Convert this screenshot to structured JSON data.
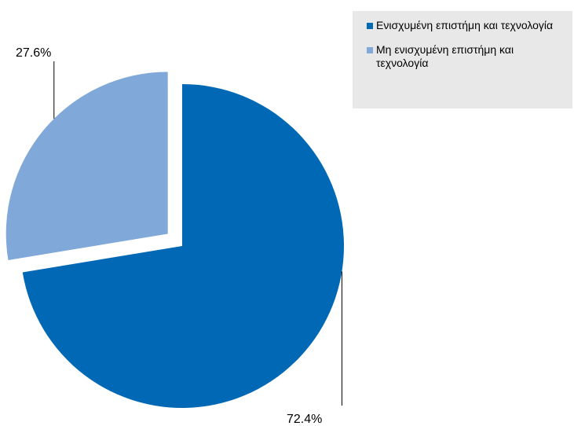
{
  "chart_data": {
    "type": "pie",
    "slices": [
      {
        "label": "Ενισχυμένη επιστήμη και τεχνολογία",
        "value": 72.4,
        "value_label": "72.4%",
        "color": "#0068b4",
        "exploded": false
      },
      {
        "label": "Μη ενισχυμένη επιστήμη και τεχνολογία",
        "value": 27.6,
        "value_label": "27.6%",
        "color": "#80a8d8",
        "exploded": true
      }
    ],
    "start": "12 o'clock",
    "direction": "clockwise",
    "legend_position": "top-right"
  }
}
